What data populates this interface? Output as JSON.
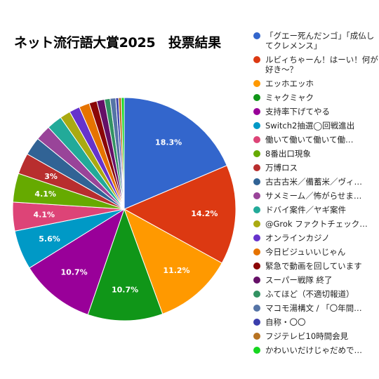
{
  "chart_data": {
    "type": "pie",
    "title": "ネット流行語大賞2025　投票結果",
    "legend_position": "right",
    "slices": [
      {
        "label": "「グエー死んだンゴ」「成仏してクレメンス」",
        "value": 18.3,
        "color": "#3366cc",
        "show_label": "18.3%"
      },
      {
        "label": "ルビィちゃーん！はーい！何が好き～？",
        "value": 14.2,
        "color": "#dc3912",
        "show_label": "14.2%"
      },
      {
        "label": "エッホエッホ",
        "value": 11.2,
        "color": "#ff9900",
        "show_label": "11.2%"
      },
      {
        "label": "ミャクミャク",
        "value": 10.7,
        "color": "#109618",
        "show_label": "10.7%"
      },
      {
        "label": "支持率下げてやる",
        "value": 10.7,
        "color": "#990099",
        "show_label": "10.7%"
      },
      {
        "label": "Switch2抽選◯回戦進出",
        "value": 5.6,
        "color": "#0099c6",
        "show_label": "5.6%"
      },
      {
        "label": "働いて働いて働いて働いて働いてまいります",
        "value": 4.1,
        "color": "#dd4477",
        "show_label": "4.1%"
      },
      {
        "label": "8番出口現象",
        "value": 4.1,
        "color": "#66aa00",
        "show_label": "4.1%"
      },
      {
        "label": "万博ロス",
        "value": 3.0,
        "color": "#b82e2e",
        "show_label": "3%"
      },
      {
        "label": "古古古米／備蓄米／ヴィンテージ米",
        "value": 2.6,
        "color": "#316395",
        "show_label": ""
      },
      {
        "label": "サメミーム／怖がらせまいとしておりますが",
        "value": 2.2,
        "color": "#994499",
        "show_label": ""
      },
      {
        "label": "ドバイ案件／ヤギ案件",
        "value": 2.2,
        "color": "#22aa99",
        "show_label": ""
      },
      {
        "label": "@Grok ファクトチェックして",
        "value": 1.5,
        "color": "#aaaa11",
        "show_label": ""
      },
      {
        "label": "オンラインカジノ",
        "value": 1.5,
        "color": "#6633cc",
        "show_label": ""
      },
      {
        "label": "今日ビジュいいじゃん",
        "value": 1.5,
        "color": "#e67300",
        "show_label": ""
      },
      {
        "label": "緊急で動画を回しています",
        "value": 1.1,
        "color": "#8b0707",
        "show_label": ""
      },
      {
        "label": "スーパー戦隊 終了",
        "value": 1.1,
        "color": "#651067",
        "show_label": ""
      },
      {
        "label": "ふてほど（不適切報道）",
        "value": 0.8,
        "color": "#329262",
        "show_label": ""
      },
      {
        "label": "マコモ湯構文 / 「〇年間〇〇してない」",
        "value": 0.8,
        "color": "#5574a6",
        "show_label": ""
      },
      {
        "label": "自称・〇〇",
        "value": 0.4,
        "color": "#3b3eac",
        "show_label": ""
      },
      {
        "label": "フジテレビ10時間会見",
        "value": 0.4,
        "color": "#b77322",
        "show_label": ""
      },
      {
        "label": "かわいいだけじゃだめですか？",
        "value": 0.4,
        "color": "#16d620",
        "show_label": ""
      }
    ]
  },
  "legend_display": [
    "「グエー死んだンゴ」「成仏してクレメンス」",
    "ルビィちゃーん！はーい！何が好き～？",
    "エッホエッホ",
    "ミャクミャク",
    "支持率下げてやる",
    "Switch2抽選◯回戦進出",
    "働いて働いて働いて働…",
    "8番出口現象",
    "万博ロス",
    "古古古米／備蓄米／ヴィ…",
    "サメミーム／怖がらせま…",
    "ドバイ案件／ヤギ案件",
    "@Grok ファクトチェック…",
    "オンラインカジノ",
    "今日ビジュいいじゃん",
    "緊急で動画を回しています",
    "スーパー戦隊 終了",
    "ふてほど（不適切報道）",
    "マコモ湯構文 / 「〇年間…",
    "自称・〇〇",
    "フジテレビ10時間会見",
    "かわいいだけじゃだめで…"
  ]
}
